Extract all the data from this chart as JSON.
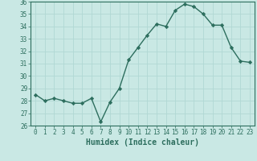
{
  "x": [
    0,
    1,
    2,
    3,
    4,
    5,
    6,
    7,
    8,
    9,
    10,
    11,
    12,
    13,
    14,
    15,
    16,
    17,
    18,
    19,
    20,
    21,
    22,
    23
  ],
  "y": [
    28.5,
    28.0,
    28.2,
    28.0,
    27.8,
    27.8,
    28.2,
    26.3,
    27.9,
    29.0,
    31.3,
    32.3,
    33.3,
    34.2,
    34.0,
    35.3,
    35.8,
    35.6,
    35.0,
    34.1,
    34.1,
    32.3,
    31.2,
    31.1
  ],
  "line_color": "#2d6e5e",
  "marker": "D",
  "marker_size": 2.2,
  "background_color": "#c9e8e4",
  "grid_color": "#b0d8d4",
  "xlabel": "Humidex (Indice chaleur)",
  "ylim": [
    26,
    36
  ],
  "xlim_min": -0.5,
  "xlim_max": 23.5,
  "yticks": [
    26,
    27,
    28,
    29,
    30,
    31,
    32,
    33,
    34,
    35,
    36
  ],
  "xticks": [
    0,
    1,
    2,
    3,
    4,
    5,
    6,
    7,
    8,
    9,
    10,
    11,
    12,
    13,
    14,
    15,
    16,
    17,
    18,
    19,
    20,
    21,
    22,
    23
  ],
  "tick_label_fontsize": 5.5,
  "xlabel_fontsize": 7.0,
  "xlabel_color": "#2d6e5e",
  "tick_color": "#2d6e5e",
  "axis_color": "#2d6e5e",
  "linewidth": 1.0
}
